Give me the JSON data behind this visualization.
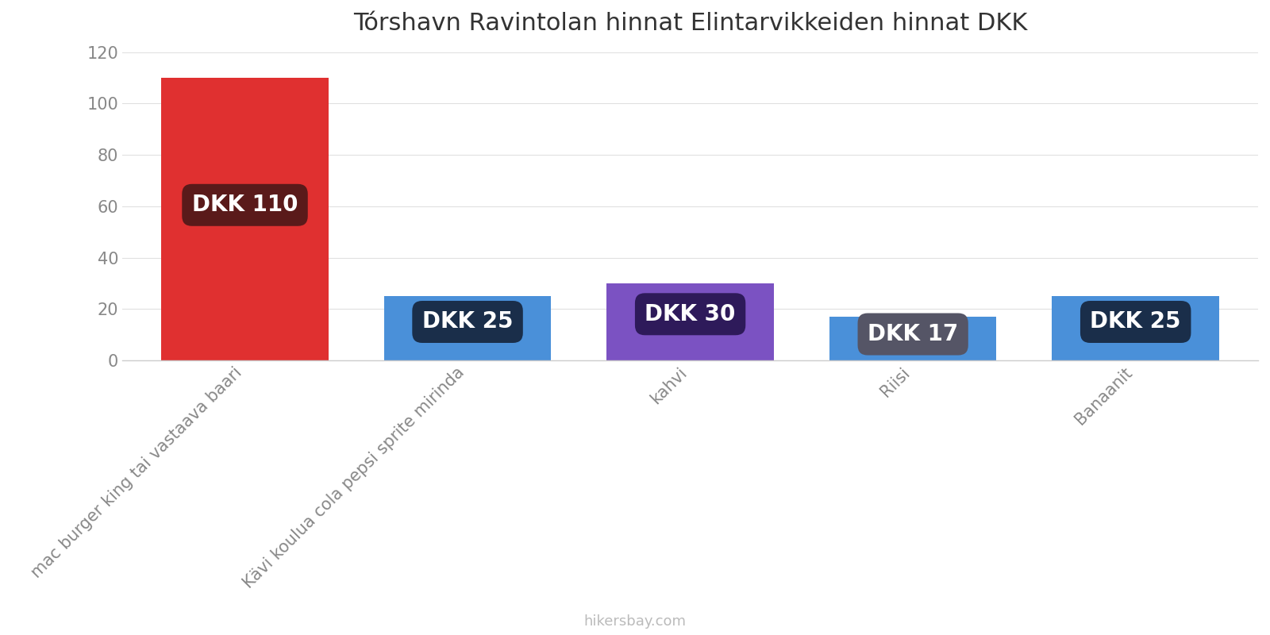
{
  "title": "Tórshavn Ravintolan hinnat Elintarvikkeiden hinnat DKK",
  "categories": [
    "mac burger king tai vastaava baari",
    "Kävi koulua cola pepsi sprite mirinda",
    "kahvi",
    "Riisi",
    "Banaanit"
  ],
  "values": [
    110,
    25,
    30,
    17,
    25
  ],
  "bar_colors": [
    "#e03030",
    "#4a90d9",
    "#7b52c2",
    "#4a90d9",
    "#4a90d9"
  ],
  "label_bg_colors": [
    "#5a1a1a",
    "#1a2e4a",
    "#2e1a5a",
    "#555566",
    "#1a2e4a"
  ],
  "labels": [
    "DKK 110",
    "DKK 25",
    "DKK 30",
    "DKK 17",
    "DKK 25"
  ],
  "ylim": [
    0,
    120
  ],
  "yticks": [
    0,
    20,
    40,
    60,
    80,
    100,
    120
  ],
  "background_color": "#ffffff",
  "title_fontsize": 22,
  "tick_fontsize": 15,
  "label_fontsize": 20,
  "footer_text": "hikersbay.com",
  "footer_color": "#bbbbbb"
}
